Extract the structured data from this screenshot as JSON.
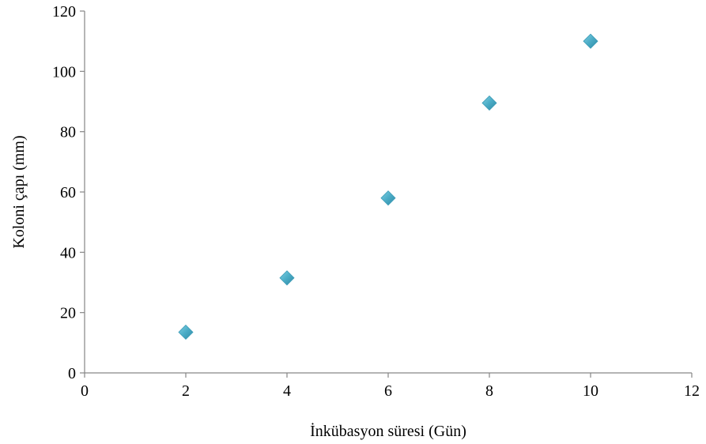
{
  "chart_data": {
    "type": "scatter",
    "title": "",
    "xlabel": "İnkübasyon süresi (Gün)",
    "ylabel": "Koloni çapı (mm)",
    "xlim": [
      0,
      12
    ],
    "ylim": [
      0,
      120
    ],
    "x_ticks": [
      0,
      2,
      4,
      6,
      8,
      10,
      12
    ],
    "y_ticks": [
      0,
      20,
      40,
      60,
      80,
      100,
      120
    ],
    "grid": false,
    "legend": "none",
    "marker": "diamond",
    "marker_color": "#4BACC6",
    "series": [
      {
        "x": [
          2,
          4,
          6,
          8,
          10
        ],
        "y": [
          13.5,
          31.5,
          58,
          89.5,
          110
        ]
      }
    ]
  }
}
